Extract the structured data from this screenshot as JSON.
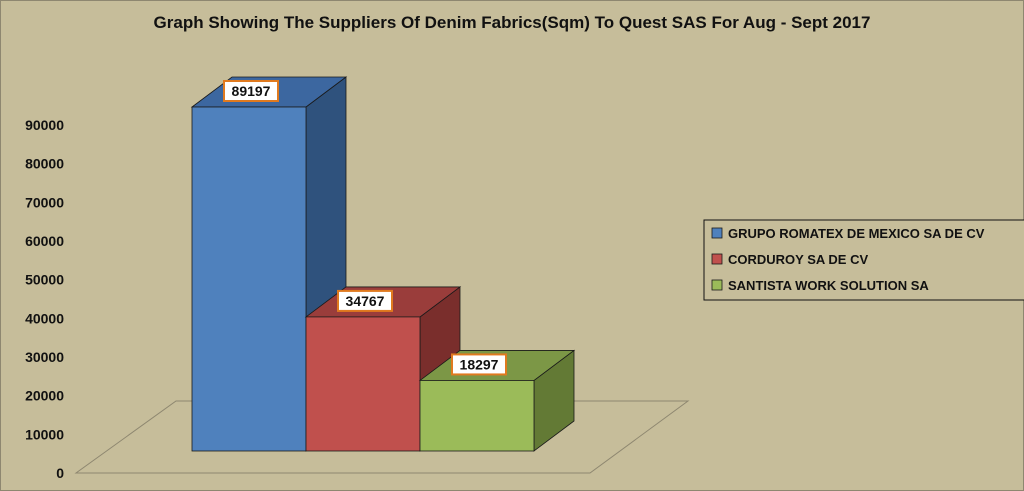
{
  "chart_data": {
    "type": "bar",
    "title": "Graph Showing The Suppliers Of Denim Fabrics(Sqm) To Quest SAS For Aug - Sept 2017",
    "xlabel": "",
    "ylabel": "",
    "ylim": [
      0,
      90000
    ],
    "y_ticks": [
      "0",
      "10000",
      "20000",
      "30000",
      "40000",
      "50000",
      "60000",
      "70000",
      "80000",
      "90000"
    ],
    "style": "3d",
    "grid": false,
    "legend_position": "right",
    "series": [
      {
        "name": "GRUPO ROMATEX DE MEXICO SA DE CV",
        "value": 89197,
        "label": "89197",
        "color": "#4f81bd",
        "side_color": "#2f527d",
        "top_color": "#3c67a0"
      },
      {
        "name": "CORDUROY SA DE CV",
        "value": 34767,
        "label": "34767",
        "color": "#c0504d",
        "side_color": "#7a2e2c",
        "top_color": "#9a3d3b"
      },
      {
        "name": "SANTISTA WORK SOLUTION SA",
        "value": 18297,
        "label": "18297",
        "color": "#9bbb59",
        "side_color": "#637a35",
        "top_color": "#7c9746"
      }
    ]
  }
}
